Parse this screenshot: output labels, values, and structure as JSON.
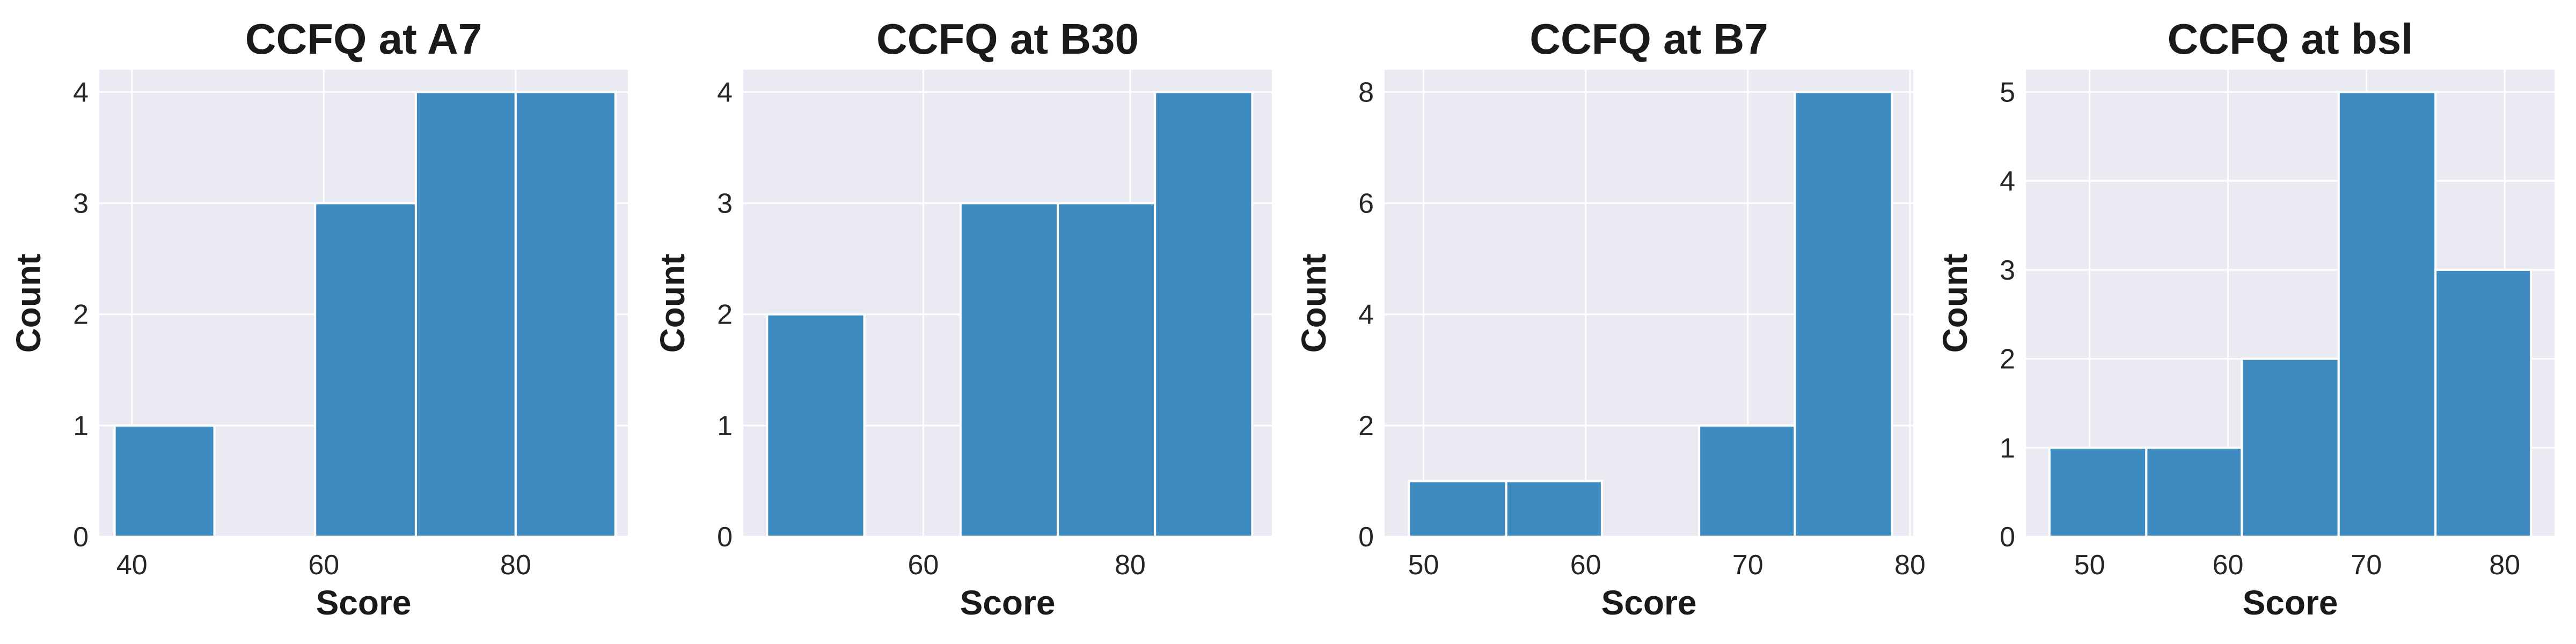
{
  "chart_data": [
    {
      "type": "bar",
      "title": "CCFQ at A7",
      "xlabel": "Score",
      "ylabel": "Count",
      "xlim": [
        36.6,
        91.7
      ],
      "ylim": [
        0,
        4.2
      ],
      "xticks": [
        40,
        60,
        80
      ],
      "yticks": [
        0,
        1,
        2,
        3,
        4
      ],
      "bins": [
        {
          "x0": 38.2,
          "x1": 48.6,
          "count": 1
        },
        {
          "x0": 48.6,
          "x1": 59.1,
          "count": 0
        },
        {
          "x0": 59.1,
          "x1": 69.6,
          "count": 3
        },
        {
          "x0": 69.6,
          "x1": 80.0,
          "count": 4
        },
        {
          "x0": 80.0,
          "x1": 90.4,
          "count": 4
        }
      ],
      "color": "#3e8bc2",
      "grid": true
    },
    {
      "type": "bar",
      "title": "CCFQ at B30",
      "xlabel": "Score",
      "ylabel": "Count",
      "xlim": [
        42.6,
        93.7
      ],
      "ylim": [
        0,
        4.2
      ],
      "xticks": [
        60,
        80
      ],
      "yticks": [
        0,
        1,
        2,
        3,
        4
      ],
      "bins": [
        {
          "x0": 44.9,
          "x1": 54.3,
          "count": 2
        },
        {
          "x0": 54.3,
          "x1": 63.6,
          "count": 0
        },
        {
          "x0": 63.6,
          "x1": 73.0,
          "count": 3
        },
        {
          "x0": 73.0,
          "x1": 82.4,
          "count": 3
        },
        {
          "x0": 82.4,
          "x1": 91.8,
          "count": 4
        }
      ],
      "color": "#3e8bc2",
      "grid": true
    },
    {
      "type": "bar",
      "title": "CCFQ at B7",
      "xlabel": "Score",
      "ylabel": "Count",
      "xlim": [
        47.6,
        80.2
      ],
      "ylim": [
        0,
        8.4
      ],
      "xticks": [
        50,
        60,
        70,
        80
      ],
      "yticks": [
        0,
        2,
        4,
        6,
        8
      ],
      "bins": [
        {
          "x0": 49.1,
          "x1": 55.1,
          "count": 1
        },
        {
          "x0": 55.1,
          "x1": 61.0,
          "count": 1
        },
        {
          "x0": 61.0,
          "x1": 67.0,
          "count": 0
        },
        {
          "x0": 67.0,
          "x1": 72.9,
          "count": 2
        },
        {
          "x0": 72.9,
          "x1": 78.9,
          "count": 8
        }
      ],
      "color": "#3e8bc2",
      "grid": true
    },
    {
      "type": "bar",
      "title": "CCFQ at bsl",
      "xlabel": "Score",
      "ylabel": "Count",
      "xlim": [
        45.4,
        83.6
      ],
      "ylim": [
        0,
        5.25
      ],
      "xticks": [
        50,
        60,
        70,
        80
      ],
      "yticks": [
        0,
        1,
        2,
        3,
        4,
        5
      ],
      "bins": [
        {
          "x0": 47.1,
          "x1": 54.1,
          "count": 1
        },
        {
          "x0": 54.1,
          "x1": 61.0,
          "count": 1
        },
        {
          "x0": 61.0,
          "x1": 68.0,
          "count": 2
        },
        {
          "x0": 68.0,
          "x1": 75.0,
          "count": 5
        },
        {
          "x0": 75.0,
          "x1": 81.9,
          "count": 3
        }
      ],
      "color": "#3e8bc2",
      "grid": true
    }
  ]
}
